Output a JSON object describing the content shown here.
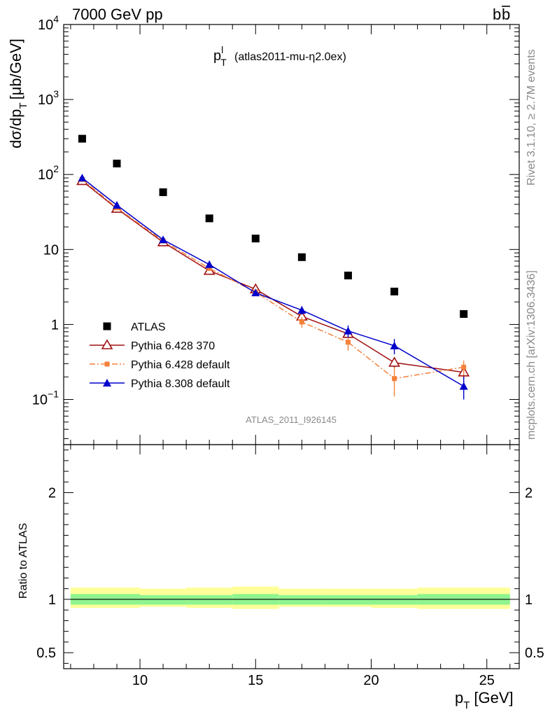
{
  "header": {
    "left": "7000 GeV pp",
    "right_main": "b",
    "right_bar": "b"
  },
  "side_labels": {
    "rivet": "Rivet 3.1.10, ≥ 2.7M events",
    "mcplots": "mcplots.cern.ch [arXiv:1306.3436]"
  },
  "plot_title": {
    "main": "p",
    "sup": "l",
    "sub": "T",
    "extra": "(atlas2011-mu-η2.0ex)"
  },
  "watermark": "ATLAS_2011_I926145",
  "y_axis": {
    "label_main": "dσ/dp",
    "label_sub": "T",
    "label_unit": "[μb/GeV]"
  },
  "ratio_axis": {
    "label": "Ratio to ATLAS"
  },
  "x_axis": {
    "label_main": "p",
    "label_sub": "T",
    "label_unit": "[GeV]"
  },
  "chart_data": {
    "type": "scatter",
    "x_range": [
      6.7,
      26.4
    ],
    "y_range": [
      0.025,
      10000
    ],
    "y_scale": "log",
    "ratio_range": [
      0.35,
      2.45
    ],
    "x_ticks": [
      {
        "value": 10,
        "label": "10"
      },
      {
        "value": 15,
        "label": "15"
      },
      {
        "value": 20,
        "label": "20"
      },
      {
        "value": 25,
        "label": "25"
      }
    ],
    "y_ticks": [
      {
        "value": 0.1,
        "base": "10",
        "exp": "−1"
      },
      {
        "value": 1,
        "base": "1",
        "exp": ""
      },
      {
        "value": 10,
        "base": "10",
        "exp": ""
      },
      {
        "value": 100,
        "base": "10",
        "exp": "2"
      },
      {
        "value": 1000,
        "base": "10",
        "exp": "3"
      },
      {
        "value": 10000,
        "base": "10",
        "exp": "4"
      }
    ],
    "ratio_ticks": [
      {
        "value": 0.5,
        "label": "0.5"
      },
      {
        "value": 1,
        "label": "1"
      },
      {
        "value": 2,
        "label": "2"
      }
    ],
    "legend_position": "lower-left",
    "series": [
      {
        "name": "ATLAS",
        "color": "#000000",
        "marker": "square",
        "line": "none",
        "x": [
          7.5,
          9,
          11,
          13,
          15,
          17,
          19,
          21,
          24
        ],
        "y": [
          300,
          140,
          58,
          26,
          14,
          7.9,
          4.5,
          2.75,
          1.38
        ]
      },
      {
        "name": "Pythia 6.428 370",
        "color": "#a01010",
        "marker": "triangle-open",
        "line": "solid",
        "x": [
          7.5,
          9,
          11,
          13,
          15,
          17,
          19,
          21,
          24
        ],
        "y": [
          82,
          35,
          12.5,
          5.2,
          2.95,
          1.28,
          0.75,
          0.31,
          0.23
        ],
        "yerr": [
          0,
          0,
          0,
          0,
          0,
          0.1,
          0.08,
          0.05,
          0.04
        ]
      },
      {
        "name": "Pythia 6.428 default",
        "color": "#f5813a",
        "marker": "square-small",
        "line": "dashdot",
        "x": [
          7.5,
          9,
          11,
          13,
          15,
          17,
          19,
          21,
          24
        ],
        "y": [
          86,
          36,
          13,
          5.6,
          2.7,
          1.08,
          0.58,
          0.19,
          0.27
        ],
        "yerr": [
          0,
          0,
          0,
          0.3,
          0.2,
          0.17,
          0.13,
          0.08,
          0.06
        ]
      },
      {
        "name": "Pythia 8.308 default",
        "color": "#0000cc",
        "marker": "triangle-filled",
        "line": "solid",
        "x": [
          7.5,
          9,
          11,
          13,
          15,
          17,
          19,
          21,
          24
        ],
        "y": [
          90,
          39,
          13.5,
          6.3,
          2.65,
          1.55,
          0.82,
          0.52,
          0.15
        ],
        "yerr": [
          0,
          0,
          0,
          0,
          0.2,
          0.2,
          0.15,
          0.12,
          0.05
        ]
      }
    ],
    "ratio_band": {
      "x_edges": [
        7,
        8,
        10,
        12,
        14,
        16,
        18,
        20,
        22,
        26
      ],
      "inner_lo": [
        0.95,
        0.95,
        0.95,
        0.95,
        0.95,
        0.95,
        0.95,
        0.95,
        0.95
      ],
      "inner_hi": [
        1.05,
        1.05,
        1.04,
        1.04,
        1.05,
        1.04,
        1.04,
        1.04,
        1.05
      ],
      "outer_lo": [
        0.92,
        0.92,
        0.93,
        0.92,
        0.91,
        0.93,
        0.93,
        0.92,
        0.91
      ],
      "outer_hi": [
        1.11,
        1.11,
        1.1,
        1.11,
        1.12,
        1.1,
        1.1,
        1.1,
        1.11
      ],
      "inner_color": "#8ff48f",
      "outer_color": "#ffff99"
    }
  }
}
